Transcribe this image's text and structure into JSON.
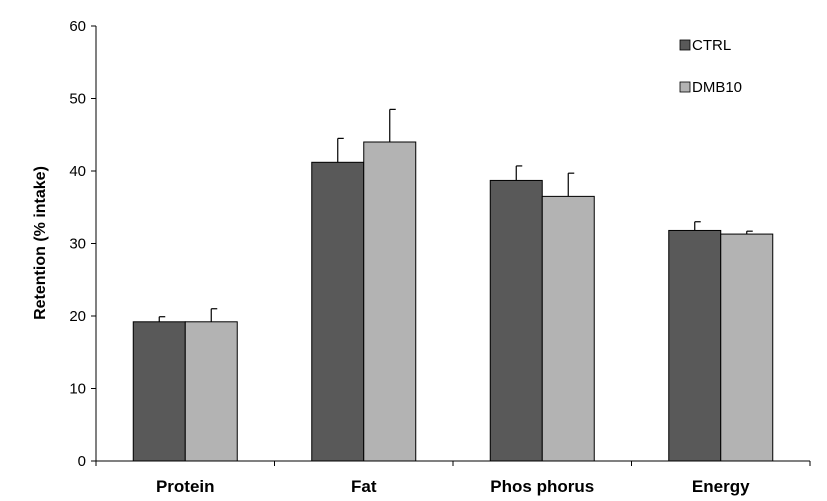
{
  "chart_data": {
    "type": "bar",
    "categories": [
      "Protein",
      "Fat",
      "Phos phorus",
      "Energy"
    ],
    "series": [
      {
        "name": "CTRL",
        "color": "#595959",
        "values": [
          19.2,
          41.2,
          38.7,
          31.8
        ],
        "errors": [
          0.7,
          3.3,
          2.0,
          1.2
        ]
      },
      {
        "name": "DMB10",
        "color": "#b3b3b3",
        "values": [
          19.2,
          44.0,
          36.5,
          31.3
        ],
        "errors": [
          1.8,
          4.5,
          3.2,
          0.4
        ]
      }
    ],
    "ylabel": "Retention (% intake)",
    "xlabel": "",
    "ylim": [
      0,
      60
    ],
    "yticks": [
      0,
      10,
      20,
      30,
      40,
      50,
      60
    ],
    "grid": false,
    "legend_position": "top-right"
  }
}
